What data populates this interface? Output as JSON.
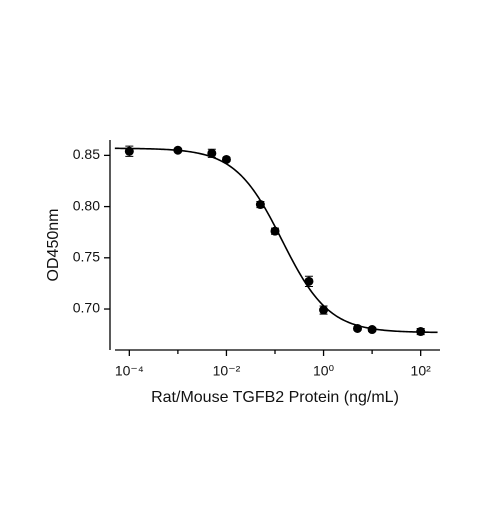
{
  "chart_data": {
    "type": "scatter",
    "x_label": "Rat/Mouse TGFB2 Protein (ng/mL)",
    "y_label": "OD450nm",
    "xscale": "log",
    "xlim": [
      4e-05,
      250
    ],
    "ylim": [
      0.66,
      0.865
    ],
    "xticks": [
      {
        "value": 0.0001,
        "label": "10⁻⁴"
      },
      {
        "value": 0.01,
        "label": "10⁻²"
      },
      {
        "value": 1,
        "label": "10⁰"
      },
      {
        "value": 100,
        "label": "10²"
      }
    ],
    "xminor_ticks": [
      0.001,
      0.1,
      10
    ],
    "yticks": [
      {
        "value": 0.7,
        "label": "0.70"
      },
      0.75,
      {
        "value": 0.8,
        "label": "0.80"
      },
      0.85
    ],
    "color": "#000000",
    "x": [
      0.0001,
      0.001,
      0.005,
      0.01,
      0.05,
      0.1,
      0.5,
      1,
      5,
      10,
      100
    ],
    "values": [
      0.854,
      0.855,
      0.852,
      0.846,
      0.802,
      0.776,
      0.727,
      0.699,
      0.681,
      0.68,
      0.678
    ],
    "errors": [
      0.005,
      0.001,
      0.004,
      0.002,
      0.003,
      0.003,
      0.005,
      0.004,
      0.002,
      0.002,
      0.003
    ],
    "fit": {
      "bottom": 0.677,
      "top": 0.857,
      "ec50": 0.14,
      "hill": 0.9
    }
  }
}
